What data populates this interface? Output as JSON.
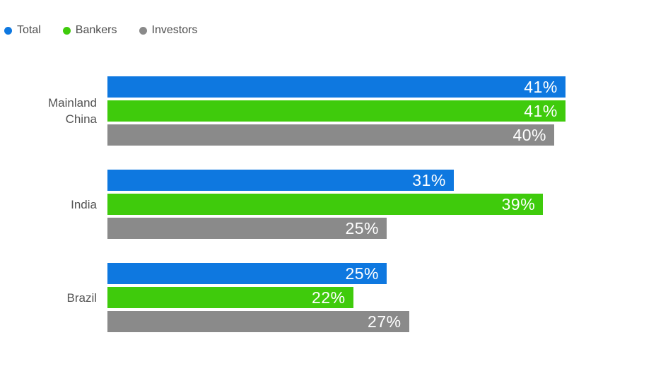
{
  "chart_data": {
    "type": "bar",
    "orientation": "horizontal",
    "title": "",
    "categories": [
      "Mainland China",
      "India",
      "Brazil"
    ],
    "series": [
      {
        "name": "Total",
        "color": "#0e78e0",
        "values": [
          41,
          31,
          25
        ]
      },
      {
        "name": "Bankers",
        "color": "#3fcb0c",
        "values": [
          41,
          39,
          22
        ]
      },
      {
        "name": "Investors",
        "color": "#8a8a8a",
        "values": [
          40,
          25,
          27
        ]
      }
    ],
    "value_suffix": "%",
    "xlim": [
      0,
      50
    ],
    "grid": false,
    "legend_position": "top-left",
    "text_colors": {
      "category_label": "#545454",
      "value_label": "#ffffff",
      "legend_label": "#4d4d4d"
    }
  }
}
